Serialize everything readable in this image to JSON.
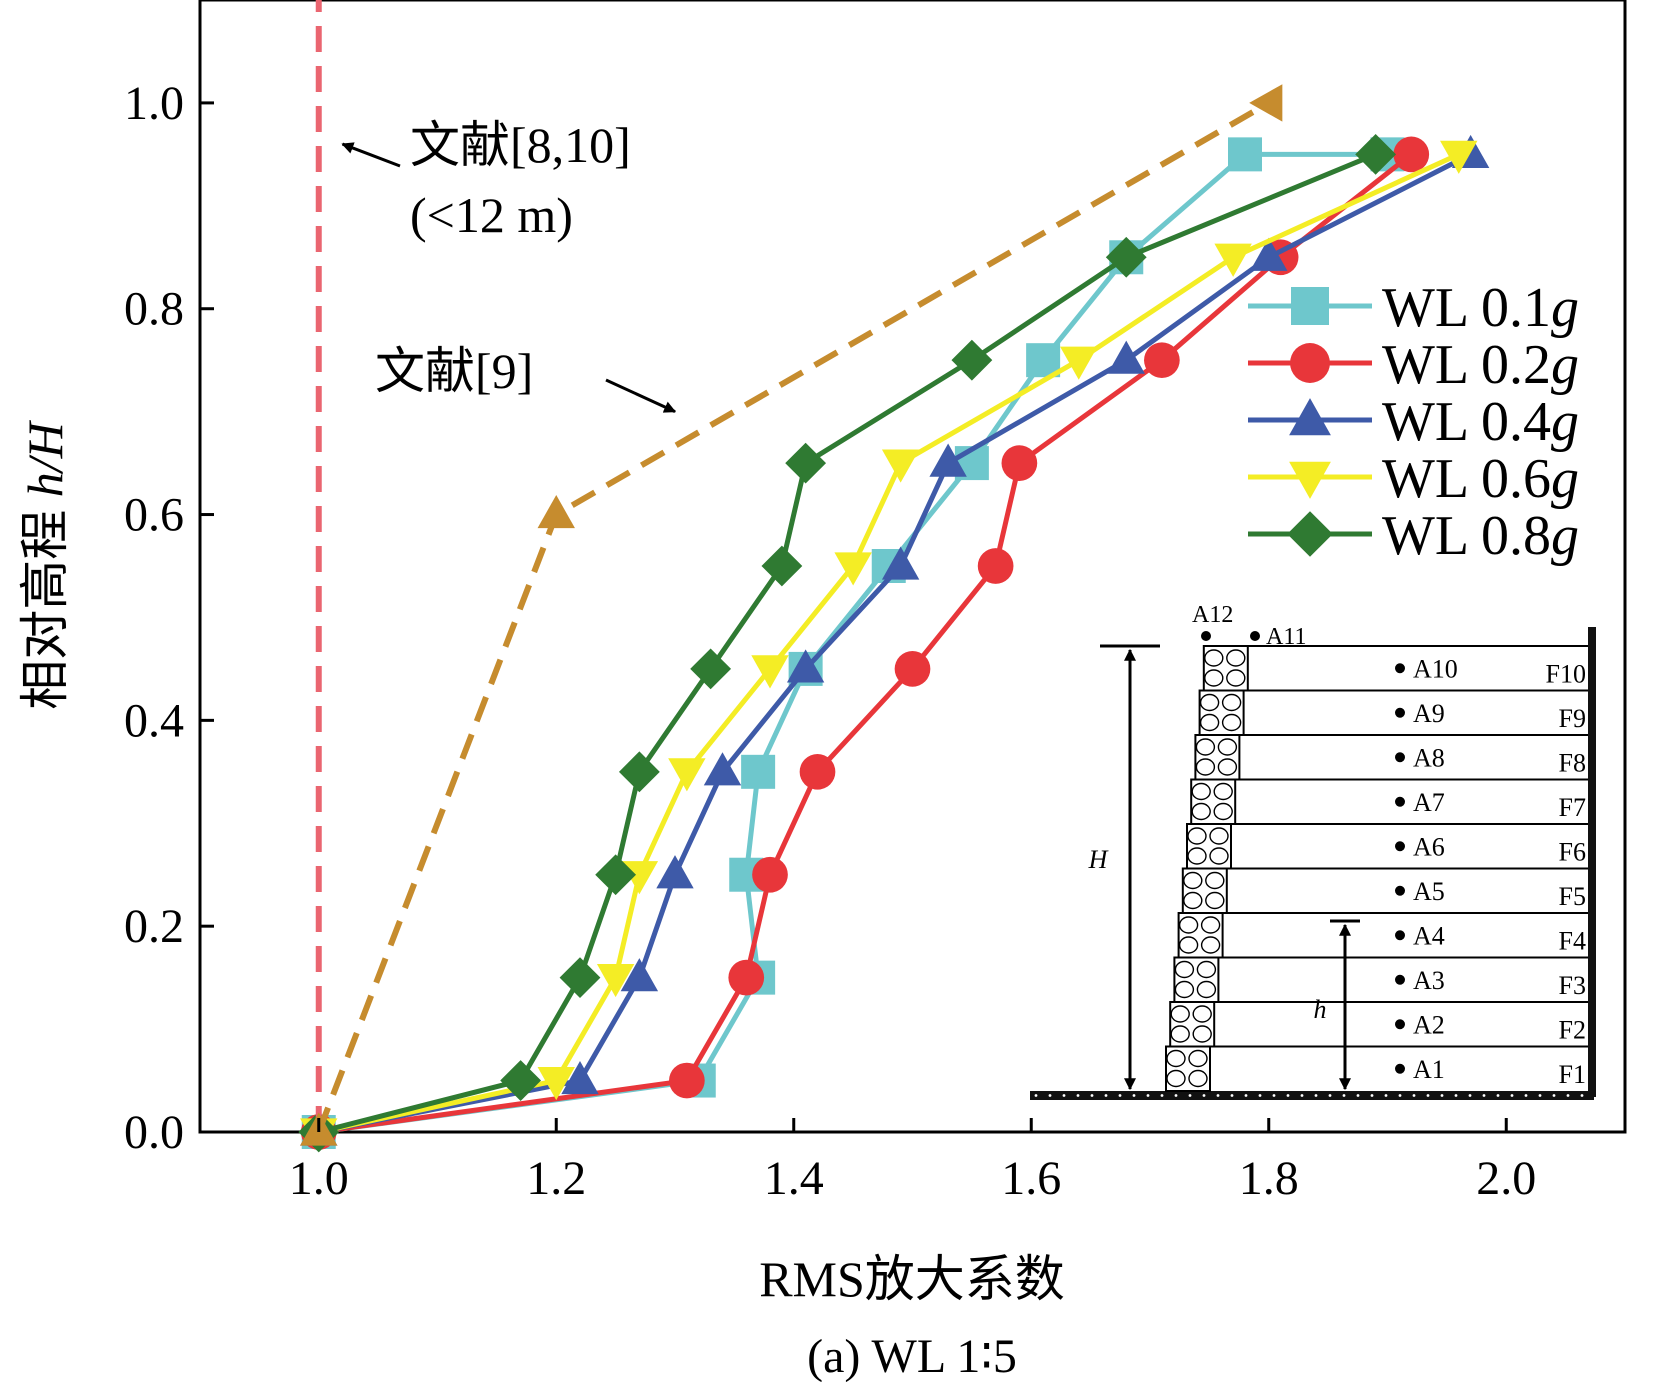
{
  "chart_data": {
    "type": "line",
    "caption": "(a) WL 1∶5",
    "xlabel": "RMS放大系数",
    "ylabel_main": "相对高程 ",
    "ylabel_italic": "h/H",
    "xlim": [
      0.9,
      2.1
    ],
    "ylim": [
      0.0,
      1.1
    ],
    "xticks": [
      1.0,
      1.2,
      1.4,
      1.6,
      1.8,
      2.0
    ],
    "yticks": [
      0.0,
      0.2,
      0.4,
      0.6,
      0.8,
      1.0
    ],
    "grid": false,
    "legend_position": "top-right",
    "series": [
      {
        "name": "WL 0.1",
        "name_suffix": "g",
        "color": "#6ec7cc",
        "marker": "square",
        "dashed": false,
        "x": [
          1.0,
          1.32,
          1.37,
          1.36,
          1.37,
          1.41,
          1.48,
          1.55,
          1.61,
          1.68,
          1.78,
          1.9
        ],
        "y": [
          0.0,
          0.05,
          0.15,
          0.25,
          0.35,
          0.45,
          0.55,
          0.65,
          0.75,
          0.85,
          0.95,
          0.95
        ]
      },
      {
        "name": "WL 0.2",
        "name_suffix": "g",
        "color": "#e8363a",
        "marker": "circle",
        "dashed": false,
        "x": [
          1.0,
          1.31,
          1.36,
          1.38,
          1.42,
          1.5,
          1.57,
          1.59,
          1.71,
          1.81,
          1.92
        ],
        "y": [
          0.0,
          0.05,
          0.15,
          0.25,
          0.35,
          0.45,
          0.55,
          0.65,
          0.75,
          0.85,
          0.95
        ]
      },
      {
        "name": "WL 0.4",
        "name_suffix": "g",
        "color": "#3e5aa8",
        "marker": "triangle-up",
        "dashed": false,
        "x": [
          1.0,
          1.22,
          1.27,
          1.3,
          1.34,
          1.41,
          1.49,
          1.53,
          1.68,
          1.8,
          1.97
        ],
        "y": [
          0.0,
          0.05,
          0.15,
          0.25,
          0.35,
          0.45,
          0.55,
          0.65,
          0.75,
          0.85,
          0.95
        ]
      },
      {
        "name": "WL 0.6",
        "name_suffix": "g",
        "color": "#f4ed25",
        "marker": "triangle-down",
        "dashed": false,
        "x": [
          1.0,
          1.2,
          1.25,
          1.27,
          1.31,
          1.38,
          1.45,
          1.49,
          1.64,
          1.77,
          1.96
        ],
        "y": [
          0.0,
          0.05,
          0.15,
          0.25,
          0.35,
          0.45,
          0.55,
          0.65,
          0.75,
          0.85,
          0.95
        ]
      },
      {
        "name": "WL 0.8",
        "name_suffix": "g",
        "color": "#2f7a32",
        "marker": "diamond",
        "dashed": false,
        "x": [
          1.0,
          1.17,
          1.22,
          1.25,
          1.27,
          1.33,
          1.39,
          1.41,
          1.55,
          1.68,
          1.89
        ],
        "y": [
          0.0,
          0.05,
          0.15,
          0.25,
          0.35,
          0.45,
          0.55,
          0.65,
          0.75,
          0.85,
          0.95
        ]
      },
      {
        "color": "#ea6570",
        "marker": "none",
        "dashed": true,
        "x": [
          1.0,
          1.0
        ],
        "y": [
          0.0,
          1.1
        ]
      },
      {
        "color": "#c68c2e",
        "marker": "triangle-up",
        "marker_last": "triangle-left",
        "dashed": true,
        "x": [
          1.0,
          1.2,
          1.8
        ],
        "y": [
          0.0,
          0.6,
          1.0
        ]
      }
    ],
    "annotations": [
      {
        "id": "ref-8-10",
        "lines": [
          "文献[8,10]",
          "(<12 m)"
        ],
        "arrow_to": [
          1.02,
          0.96
        ]
      },
      {
        "id": "ref-9",
        "lines": [
          "文献[9]"
        ],
        "arrow_to": [
          1.3,
          0.7
        ]
      }
    ],
    "inset": {
      "height_label": "H",
      "h_label": "h",
      "sensors": [
        "A1",
        "A2",
        "A3",
        "A4",
        "A5",
        "A6",
        "A7",
        "A8",
        "A9",
        "A10",
        "A11",
        "A12"
      ],
      "floors": [
        "F1",
        "F2",
        "F3",
        "F4",
        "F5",
        "F6",
        "F7",
        "F8",
        "F9",
        "F10"
      ]
    }
  }
}
